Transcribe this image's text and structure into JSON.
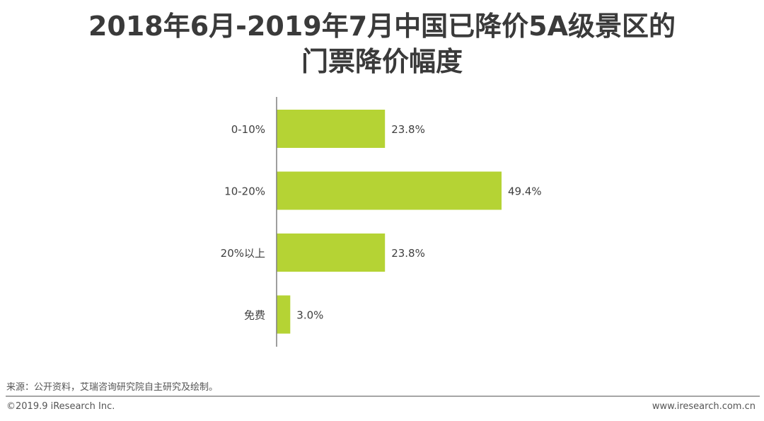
{
  "chart_data": {
    "type": "bar",
    "orientation": "horizontal",
    "title": "2018年6月-2019年7月中国已降价5A级景区的门票降价幅度",
    "title_lines": [
      "2018年6月-2019年7月中国已降价5A级景区的",
      "门票降价幅度"
    ],
    "categories": [
      "0-10%",
      "10-20%",
      "20%以上",
      "免费"
    ],
    "values": [
      23.8,
      49.4,
      23.8,
      3.0
    ],
    "data_labels": [
      "23.8%",
      "49.4%",
      "23.8%",
      "3.0%"
    ],
    "xlim": [
      0,
      60
    ],
    "grid": false,
    "bar_color": "#b5d334"
  },
  "footer": {
    "source": "来源：公开资料，艾瑞咨询研究院自主研究及绘制。",
    "copyright": "©2019.9 iResearch Inc.",
    "website": "www.iresearch.com.cn"
  }
}
